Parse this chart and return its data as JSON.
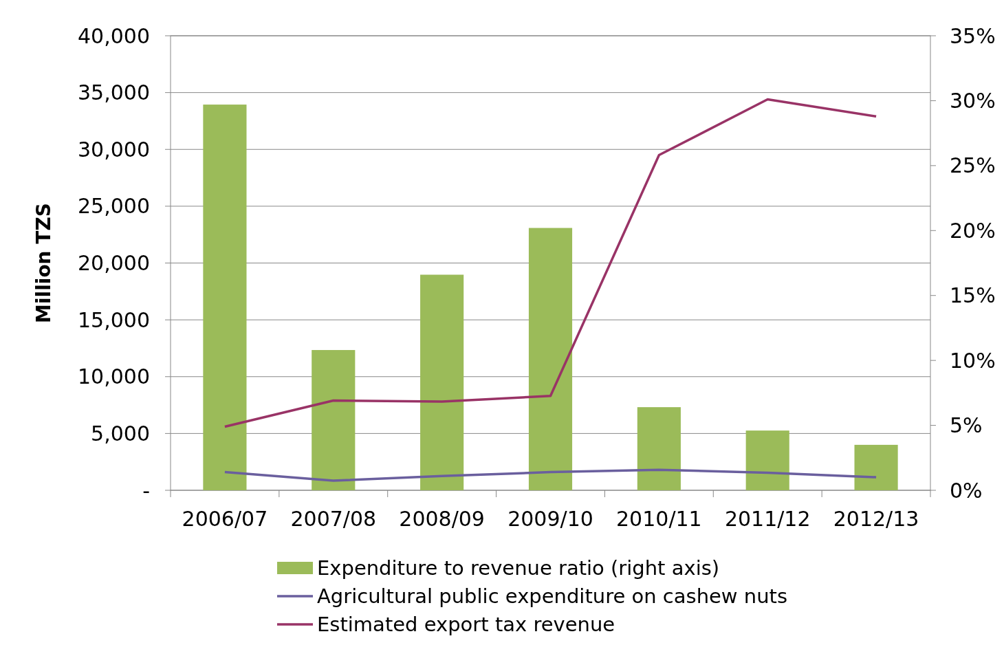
{
  "chart_data": {
    "type": "bar",
    "ylabel": "Million TZS",
    "categories": [
      "2006/07",
      "2007/08",
      "2008/09",
      "2009/10",
      "2010/11",
      "2011/12",
      "2012/13"
    ],
    "series": [
      {
        "name": "Expenditure to revenue ratio (right axis)",
        "axis": "y2",
        "color": "#9bbb59",
        "values": [
          29.7,
          10.8,
          16.6,
          20.2,
          6.4,
          4.6,
          3.5
        ]
      },
      {
        "name": "Agricultural public expenditure on cashew nuts",
        "type": "line",
        "color": "#6a5f9e",
        "values": [
          1600,
          850,
          1250,
          1600,
          1800,
          1550,
          1150
        ]
      },
      {
        "name": "Estimated export tax revenue",
        "type": "line",
        "color": "#993366",
        "values": [
          5600,
          7900,
          7800,
          8300,
          29500,
          34400,
          32900
        ]
      }
    ],
    "ylim": [
      0,
      40000
    ],
    "yticks": [
      {
        "value": 0,
        "label": "-"
      },
      {
        "value": 5000,
        "label": "5,000"
      },
      {
        "value": 10000,
        "label": "10,000"
      },
      {
        "value": 15000,
        "label": "15,000"
      },
      {
        "value": 20000,
        "label": "20,000"
      },
      {
        "value": 25000,
        "label": "25,000"
      },
      {
        "value": 30000,
        "label": "30,000"
      },
      {
        "value": 35000,
        "label": "35,000"
      },
      {
        "value": 40000,
        "label": "40,000"
      }
    ],
    "y2lim": [
      0,
      35
    ],
    "y2ticks": [
      {
        "value": 0,
        "label": "0%"
      },
      {
        "value": 5,
        "label": "5%"
      },
      {
        "value": 10,
        "label": "10%"
      },
      {
        "value": 15,
        "label": "15%"
      },
      {
        "value": 20,
        "label": "20%"
      },
      {
        "value": 25,
        "label": "25%"
      },
      {
        "value": 30,
        "label": "30%"
      },
      {
        "value": 35,
        "label": "35%"
      }
    ],
    "grid": "y",
    "legend": "bottom",
    "marker": "none",
    "line_style": "solid"
  }
}
